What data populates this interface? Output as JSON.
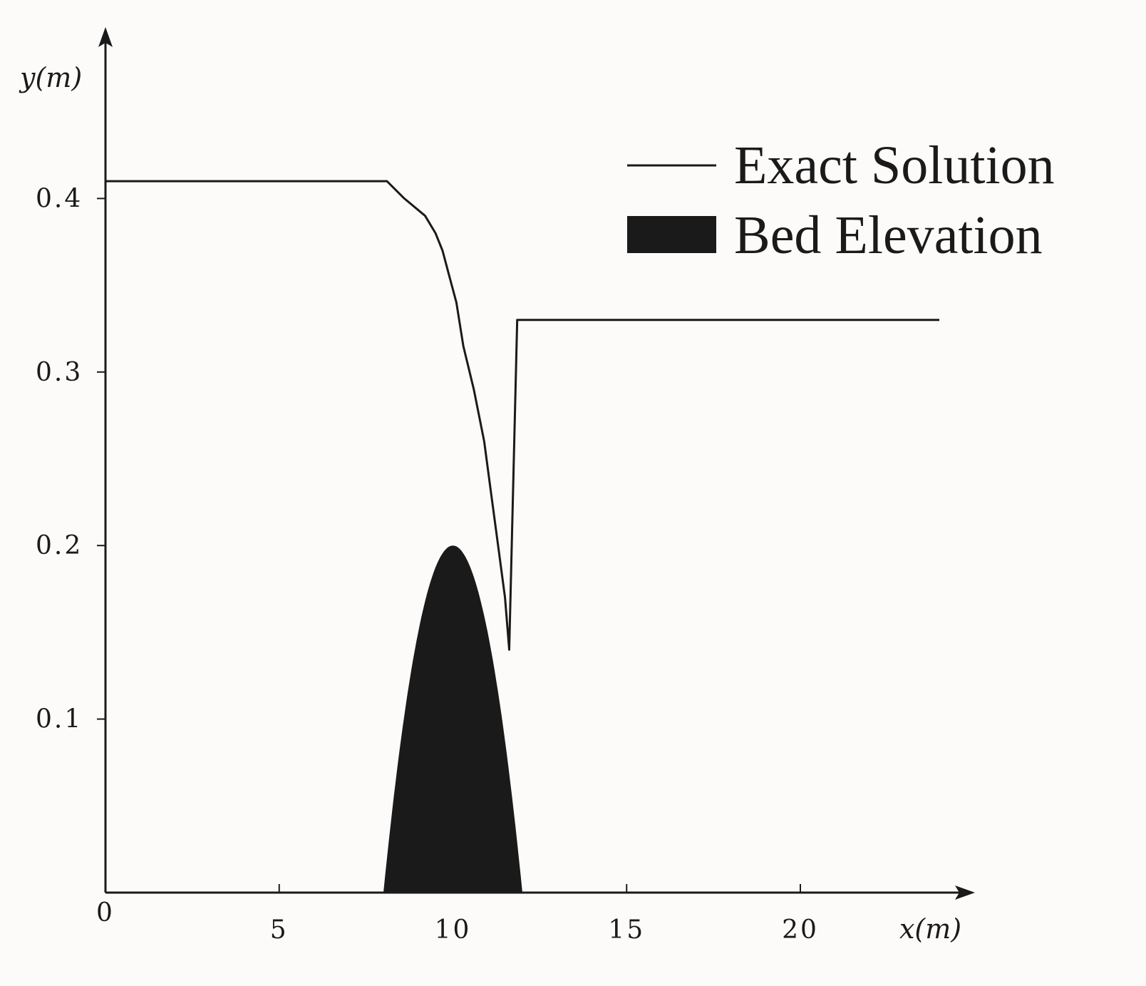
{
  "chart_data": {
    "type": "area",
    "xlabel": "x(m)",
    "ylabel": "y(m)",
    "xlim": [
      0,
      25
    ],
    "ylim": [
      0,
      0.48
    ],
    "x_ticks": [
      {
        "value": 0,
        "label": "0"
      },
      {
        "value": 5,
        "label": "5"
      },
      {
        "value": 10,
        "label": "10"
      },
      {
        "value": 15,
        "label": "15"
      },
      {
        "value": 20,
        "label": "20"
      }
    ],
    "y_ticks": [
      {
        "value": 0.1,
        "label": "0.1"
      },
      {
        "value": 0.2,
        "label": "0.2"
      },
      {
        "value": 0.3,
        "label": "0.3"
      },
      {
        "value": 0.4,
        "label": "0.4"
      }
    ],
    "legend": {
      "position": "top-right",
      "entries": [
        {
          "label": "Exact Solution",
          "style": "line"
        },
        {
          "label": "Bed Elevation",
          "style": "filled"
        }
      ]
    },
    "series": [
      {
        "name": "Exact Solution",
        "type": "line",
        "color": "#1a1a1a",
        "points": [
          [
            0,
            0.41
          ],
          [
            8.1,
            0.41
          ],
          [
            8.6,
            0.4
          ],
          [
            9.2,
            0.39
          ],
          [
            9.5,
            0.38
          ],
          [
            9.7,
            0.37
          ],
          [
            9.9,
            0.355
          ],
          [
            10.1,
            0.34
          ],
          [
            10.3,
            0.315
          ],
          [
            10.6,
            0.29
          ],
          [
            10.9,
            0.26
          ],
          [
            11.1,
            0.23
          ],
          [
            11.3,
            0.2
          ],
          [
            11.5,
            0.17
          ],
          [
            11.62,
            0.14
          ],
          [
            11.85,
            0.33
          ],
          [
            24.0,
            0.33
          ]
        ]
      },
      {
        "name": "Bed Elevation",
        "type": "area",
        "color": "#1a1a1a",
        "points": [
          [
            8.0,
            0
          ],
          [
            8.5,
            0.0875
          ],
          [
            9.0,
            0.15
          ],
          [
            9.5,
            0.1875
          ],
          [
            10.0,
            0.2
          ],
          [
            10.5,
            0.1875
          ],
          [
            11.0,
            0.15
          ],
          [
            11.5,
            0.0875
          ],
          [
            12.0,
            0
          ]
        ]
      }
    ],
    "grid": false
  }
}
